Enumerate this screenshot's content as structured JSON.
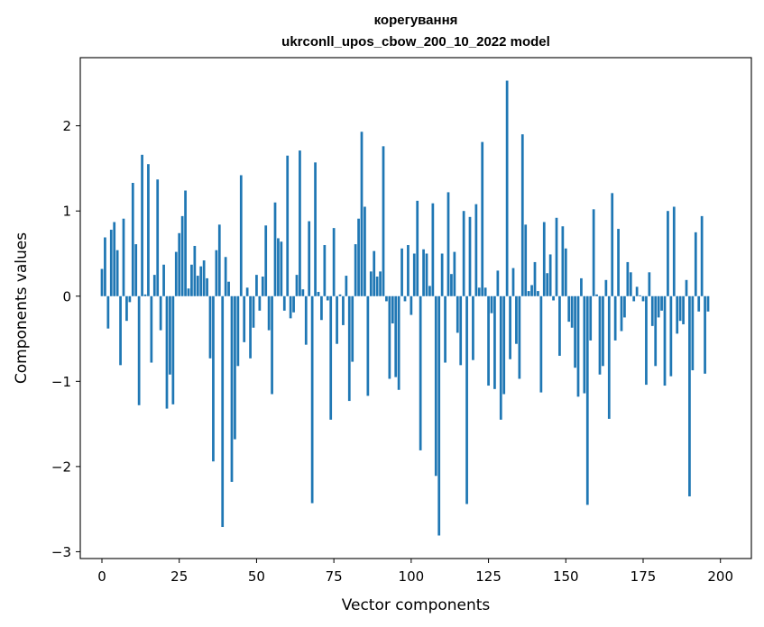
{
  "chart_data": {
    "type": "bar",
    "title": "корегування",
    "subtitle": "ukrconll_upos_cbow_200_10_2022 model",
    "xlabel": "Vector components",
    "ylabel": "Components values",
    "xlim": [
      -7,
      210
    ],
    "ylim": [
      -3.08,
      2.8
    ],
    "xticks": [
      0,
      25,
      50,
      75,
      100,
      125,
      150,
      175,
      200
    ],
    "xtick_labels": [
      "0",
      "25",
      "50",
      "75",
      "100",
      "125",
      "150",
      "175",
      "200"
    ],
    "yticks": [
      -3,
      -2,
      -1,
      0,
      1,
      2
    ],
    "ytick_labels": [
      "−3",
      "−2",
      "−1",
      "0",
      "1",
      "2"
    ],
    "bar_color": "#1f77b4",
    "grid": false,
    "values": [
      0.32,
      0.69,
      -0.38,
      0.78,
      0.87,
      0.54,
      -0.81,
      0.91,
      -0.29,
      -0.07,
      1.33,
      0.61,
      -1.28,
      1.66,
      0.02,
      1.55,
      -0.78,
      0.25,
      1.37,
      -0.4,
      0.37,
      -1.32,
      -0.92,
      -1.27,
      0.52,
      0.74,
      0.94,
      1.24,
      0.09,
      0.37,
      0.59,
      0.24,
      0.35,
      0.42,
      0.21,
      -0.73,
      -1.94,
      0.54,
      0.84,
      -2.71,
      0.46,
      0.17,
      -2.18,
      -1.68,
      -0.82,
      1.42,
      -0.54,
      0.1,
      -0.73,
      -0.37,
      0.25,
      -0.17,
      0.23,
      0.83,
      -0.4,
      -1.15,
      1.1,
      0.68,
      0.64,
      -0.17,
      1.65,
      -0.26,
      -0.19,
      0.25,
      1.71,
      0.08,
      -0.57,
      0.88,
      -2.43,
      1.57,
      0.05,
      -0.28,
      0.6,
      -0.05,
      -1.45,
      0.8,
      -0.56,
      0.02,
      -0.34,
      0.24,
      -1.23,
      -0.77,
      0.61,
      0.91,
      1.93,
      1.05,
      -1.17,
      0.29,
      0.53,
      0.23,
      0.29,
      1.76,
      -0.06,
      -0.97,
      -0.32,
      -0.95,
      -1.1,
      0.56,
      -0.06,
      0.6,
      -0.22,
      0.5,
      1.12,
      -1.81,
      0.55,
      0.5,
      0.12,
      1.09,
      -2.11,
      -2.81,
      0.5,
      -0.78,
      1.22,
      0.26,
      0.52,
      -0.43,
      -0.81,
      1.0,
      -2.44,
      0.93,
      -0.75,
      1.08,
      0.1,
      1.81,
      0.1,
      -1.05,
      -0.2,
      -1.09,
      0.3,
      -1.45,
      -1.15,
      2.53,
      -0.74,
      0.33,
      -0.56,
      -0.97,
      1.9,
      0.84,
      0.06,
      0.13,
      0.4,
      0.06,
      -1.13,
      0.87,
      0.27,
      0.49,
      -0.05,
      0.92,
      -0.7,
      0.82,
      0.56,
      -0.3,
      -0.37,
      -0.84,
      -1.18,
      0.21,
      -1.14,
      -2.45,
      -0.52,
      1.02,
      0.02,
      -0.92,
      -0.82,
      0.19,
      -1.44,
      1.21,
      -0.52,
      0.79,
      -0.41,
      -0.25,
      0.4,
      0.28,
      -0.06,
      0.11,
      0.01,
      -0.06,
      -1.04,
      0.28,
      -0.35,
      -0.82,
      -0.25,
      -0.17,
      -1.05,
      1.0,
      -0.94,
      1.05,
      -0.44,
      -0.29,
      -0.33,
      0.19,
      -2.35,
      -0.87,
      0.75,
      -0.18,
      0.94,
      -0.91,
      -0.18
    ]
  }
}
